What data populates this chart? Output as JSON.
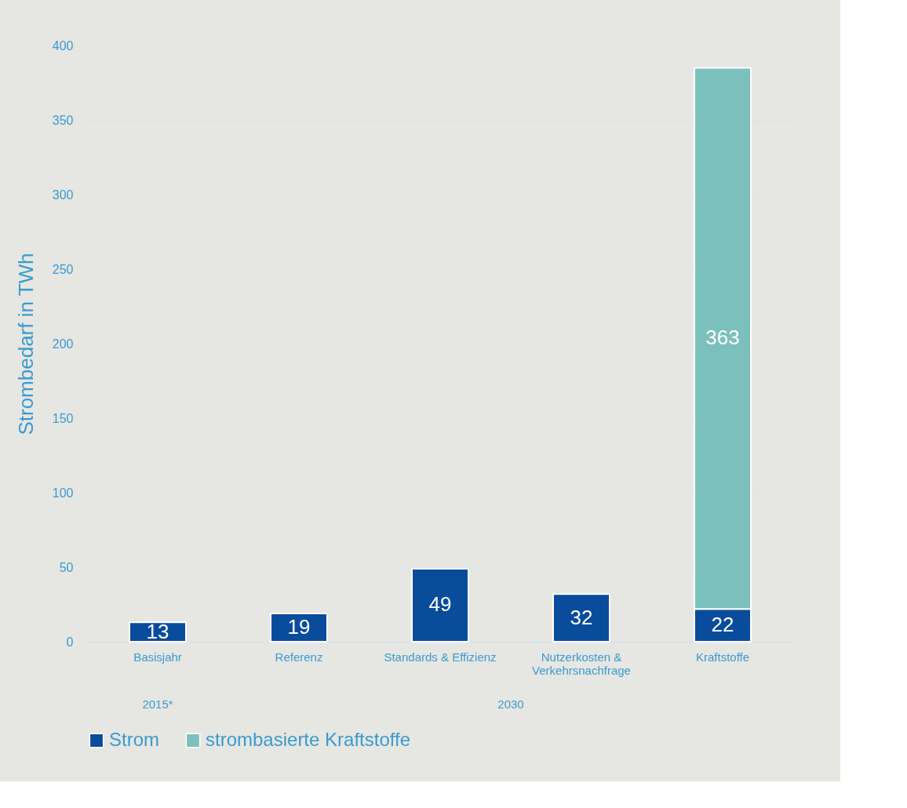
{
  "chart_data": {
    "type": "bar",
    "stacked": true,
    "ylabel": "Strombedarf in TWh",
    "categories": [
      "Basisjahr",
      "Referenz",
      "Standards & Effizienz",
      "Nutzerkosten & Verkehrsnachfrage",
      "Kraftstoffe"
    ],
    "series": [
      {
        "name": "Strom",
        "color": "#0a4c9c",
        "values": [
          13,
          19,
          49,
          32,
          22
        ]
      },
      {
        "name": "strombasierte Kraftstoffe",
        "color": "#7cc0bd",
        "values": [
          null,
          null,
          null,
          null,
          363
        ]
      }
    ],
    "ylim": [
      0,
      400
    ],
    "yticks": [
      0,
      50,
      100,
      150,
      200,
      250,
      300,
      350,
      400
    ],
    "grid": "y",
    "legend": "bottom",
    "data_labels": true,
    "annotations": [
      "2015*",
      "2030"
    ]
  }
}
